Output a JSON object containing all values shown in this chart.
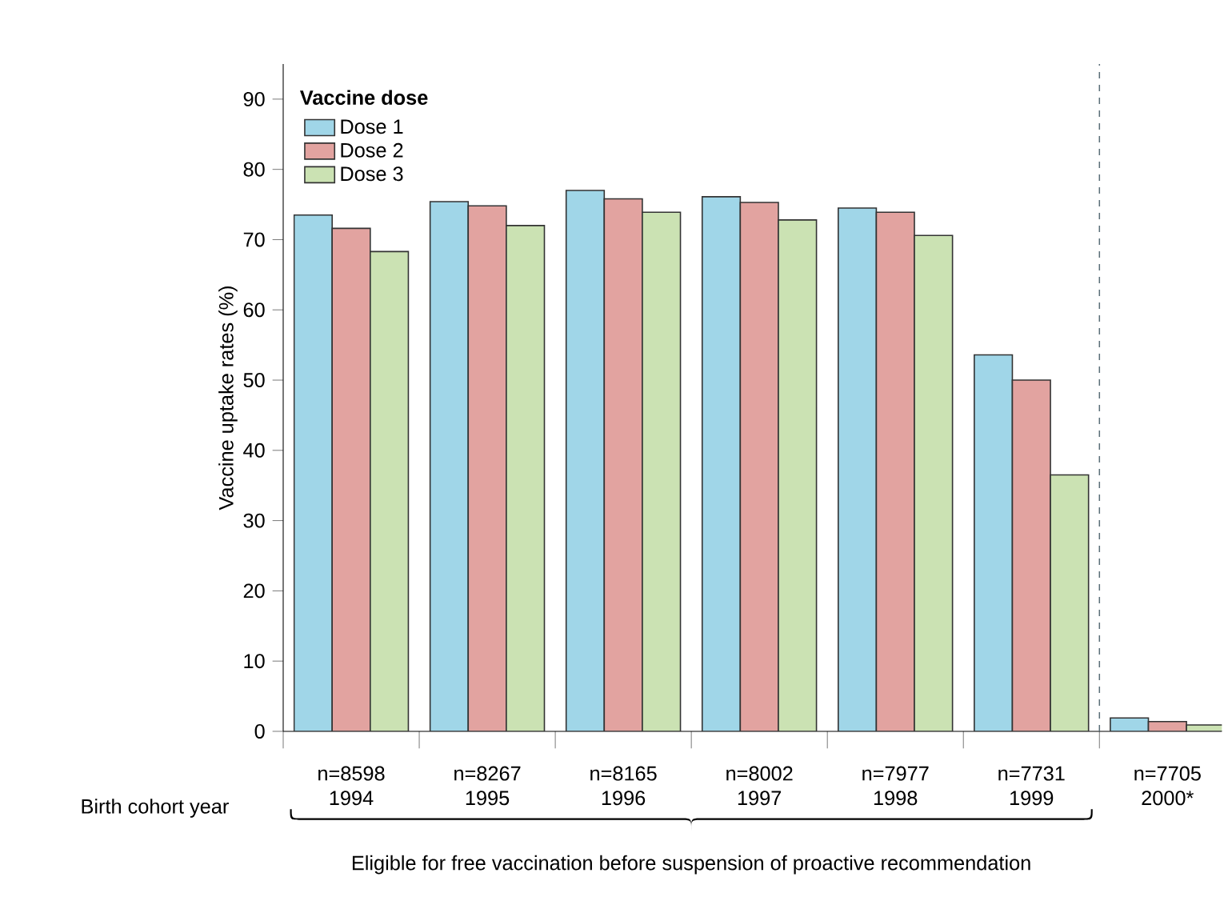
{
  "chart_data": {
    "type": "bar",
    "xlabel": "Birth cohort year",
    "ylabel": "Vaccine uptake rates (%)",
    "legend_title": "Vaccine dose",
    "categories": [
      "1994",
      "1995",
      "1996",
      "1997",
      "1998",
      "1999",
      "2000*"
    ],
    "series": [
      {
        "name": "Dose 1",
        "color": "#a0d6e8",
        "values": [
          73.5,
          75.4,
          77.0,
          76.1,
          74.5,
          53.6,
          1.9
        ]
      },
      {
        "name": "Dose 2",
        "color": "#e2a3a0",
        "values": [
          71.6,
          74.8,
          75.8,
          75.3,
          73.9,
          50.0,
          1.4
        ]
      },
      {
        "name": "Dose 3",
        "color": "#cbe2b3",
        "values": [
          68.3,
          72.0,
          73.9,
          72.8,
          70.6,
          36.5,
          0.9
        ]
      }
    ],
    "ylim": [
      0,
      95
    ],
    "yticks": [
      0,
      10,
      20,
      30,
      40,
      50,
      60,
      70,
      80,
      90
    ],
    "annotations": [
      "n=8598",
      "n=8267",
      "n=8165",
      "n=8002",
      "n=7977",
      "n=7731",
      "n=7705",
      "Eligible for free vaccination before suspension of proactive recommendation"
    ],
    "legend": "top left",
    "grid": false
  }
}
